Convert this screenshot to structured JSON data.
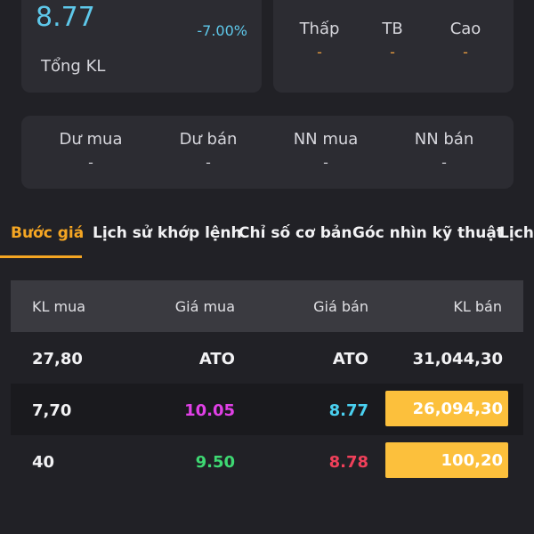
{
  "summary": {
    "price": "8.77",
    "change_pct": "-7.00%",
    "total_volume_label": "Tổng KL"
  },
  "range": {
    "low": {
      "label": "Thấp",
      "value": "-"
    },
    "avg": {
      "label": "TB",
      "value": "-"
    },
    "high": {
      "label": "Cao",
      "value": "-"
    }
  },
  "foreign": {
    "buy_surplus": {
      "label": "Dư mua",
      "value": "-"
    },
    "sell_surplus": {
      "label": "Dư bán",
      "value": "-"
    },
    "foreign_buy": {
      "label": "NN mua",
      "value": "-"
    },
    "foreign_sell": {
      "label": "NN bán",
      "value": "-"
    }
  },
  "tabs": [
    {
      "label": "Bước giá",
      "active": true
    },
    {
      "label": "Lịch sử khớp lệnh"
    },
    {
      "label": "Chỉ số cơ bản"
    },
    {
      "label": "Góc nhìn kỹ thuật"
    },
    {
      "label": "Lịch s"
    }
  ],
  "order_book": {
    "headers": {
      "bid_vol": "KL mua",
      "bid_price": "Giá mua",
      "ask_price": "Giá bán",
      "ask_vol": "KL bán"
    },
    "rows": [
      {
        "bid_vol": "27,80",
        "bid_price": "ATO",
        "ask_price": "ATO",
        "ask_vol": "31,044,30"
      },
      {
        "bid_vol": "7,70",
        "bid_price": "10.05",
        "ask_price": "8.77",
        "ask_vol": "26,094,30"
      },
      {
        "bid_vol": "40",
        "bid_price": "9.50",
        "ask_price": "8.78",
        "ask_vol": "100,20"
      }
    ]
  },
  "colors": {
    "accent": "#f5a623",
    "price_up_ceiling": "#e040e6",
    "price_ref": "#4ad0f0",
    "price_up": "#3ed872",
    "price_down": "#f0405a",
    "volume_highlight": "#fcc03c"
  }
}
